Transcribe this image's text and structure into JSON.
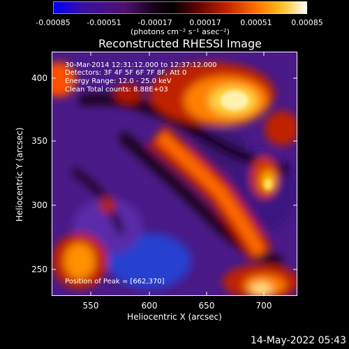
{
  "colorbar": {
    "colors": [
      "#0000ff",
      "#3a0080",
      "#2a0040",
      "#000000",
      "#500000",
      "#b02000",
      "#ff6000",
      "#ffb000",
      "#ffff80",
      "#ffffff"
    ],
    "ticks": [
      "-0.00085",
      "-0.00051",
      "-0.00017",
      "0.00017",
      "0.00051",
      "0.00085"
    ],
    "units": "(photons cm⁻² s⁻¹ asec⁻²)"
  },
  "title": "Reconstructed RHESSI Image",
  "info": {
    "time": "30-Mar-2014 12:31:12.000 to 12:37:12.000",
    "detectors": "Detectors: 3F 4F 5F 6F 7F 8F, Att 0",
    "energy": "Energy Range: 12.0 - 25.0 keV",
    "clean": "Clean     Total counts: 8.88E+03",
    "peak": "Position of Peak = [662,370]"
  },
  "axes": {
    "xlabel": "Heliocentric X (arcsec)",
    "ylabel": "Heliocentric Y (arcsec)",
    "xticks": [
      "550",
      "600",
      "650",
      "700"
    ],
    "yticks": [
      "400",
      "350",
      "300",
      "250"
    ]
  },
  "datestamp": "14-May-2022 05:43"
}
